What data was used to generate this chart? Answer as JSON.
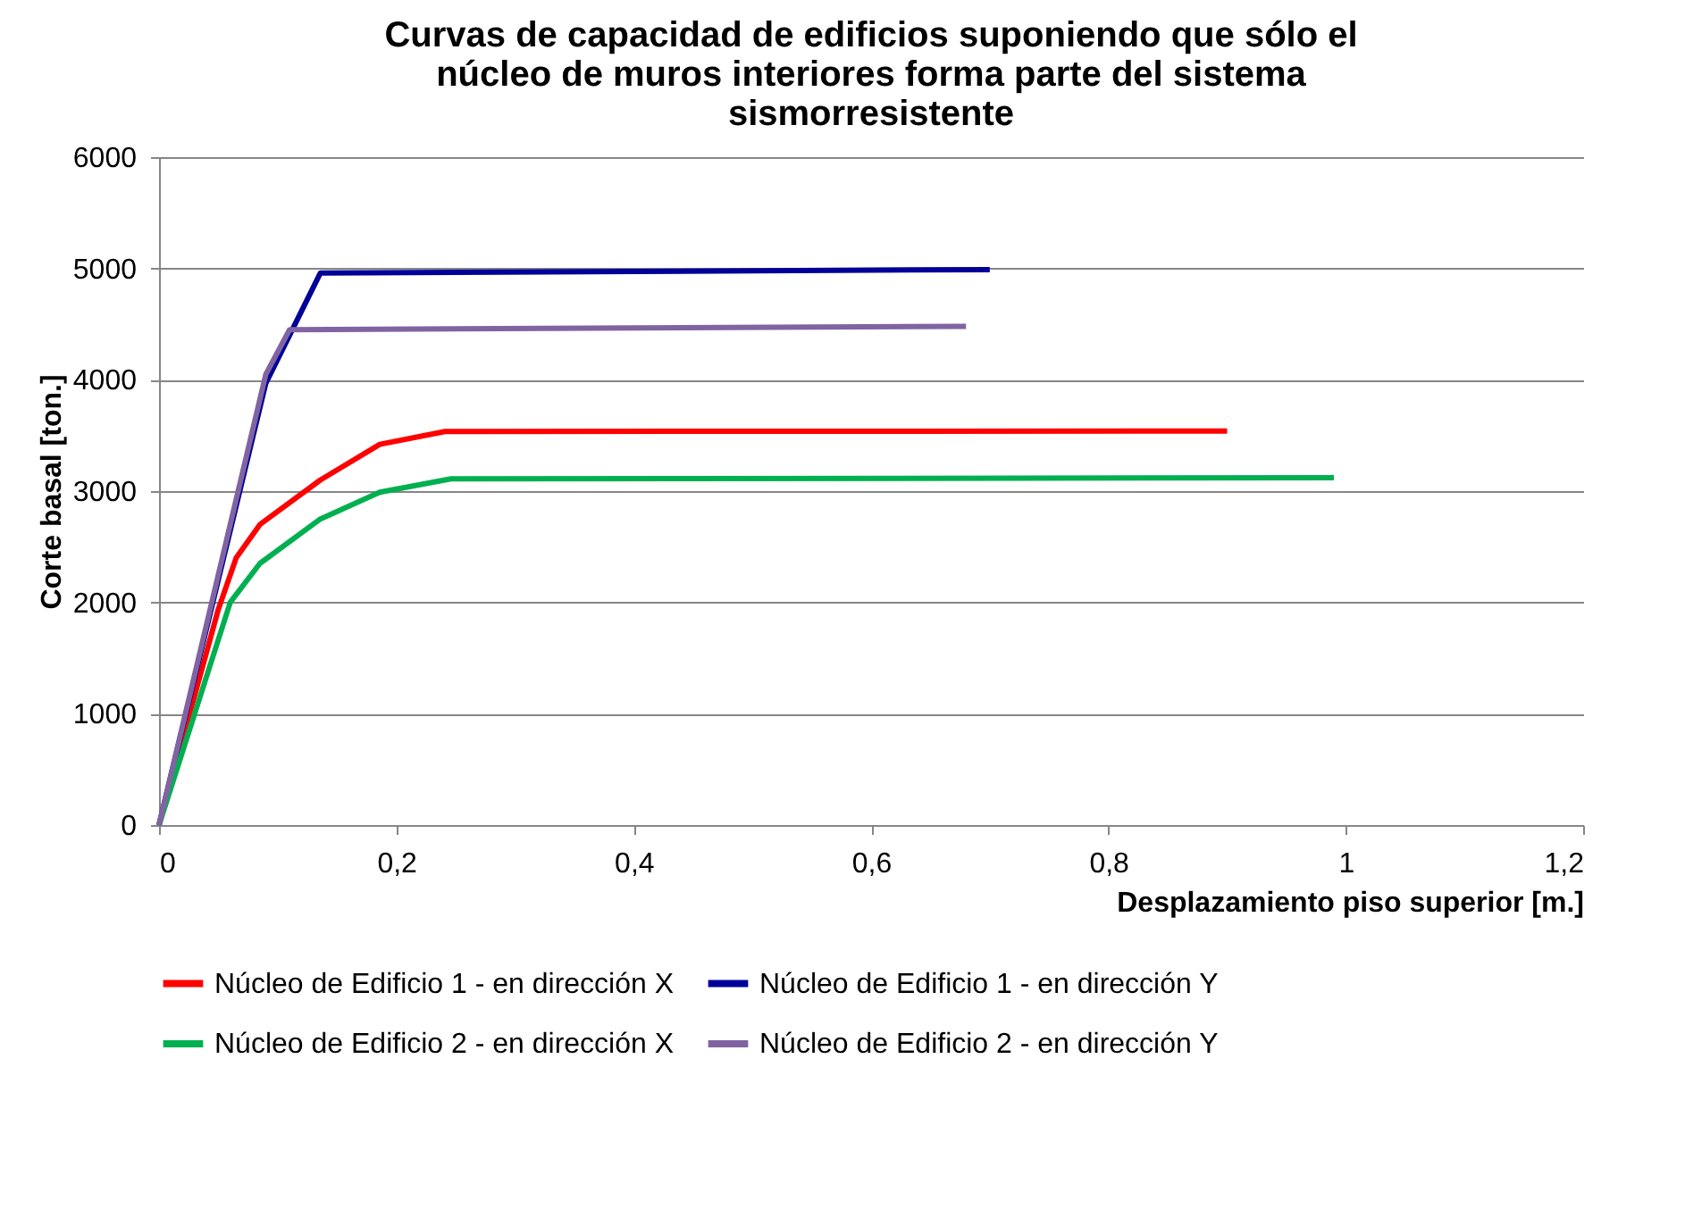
{
  "chart_data": {
    "type": "line",
    "title": "Curvas de capacidad de edificios suponiendo que sólo el núcleo de muros interiores forma parte del sistema sismorresistente",
    "xlabel": "Desplazamiento piso superior [m.]",
    "ylabel": "Corte basal [ton.]",
    "series": [
      {
        "name": "Núcleo de Edificio 1 - en dirección X",
        "color": "#ff0000",
        "x": [
          0,
          0.05,
          0.065,
          0.085,
          0.136,
          0.186,
          0.241,
          0.9
        ],
        "values": [
          0,
          1940,
          2400,
          2700,
          3100,
          3420,
          3535,
          3540
        ]
      },
      {
        "name": "Núcleo de Edificio 1 - en dirección Y",
        "color": "#000099",
        "x": [
          0,
          0.09,
          0.136,
          0.7
        ],
        "values": [
          0,
          3970,
          4960,
          4990
        ]
      },
      {
        "name": "Núcleo de Edificio 2 - en dirección X",
        "color": "#00b050",
        "x": [
          0,
          0.06,
          0.085,
          0.136,
          0.186,
          0.246,
          0.99
        ],
        "values": [
          0,
          2000,
          2350,
          2750,
          2990,
          3110,
          3120
        ]
      },
      {
        "name": "Núcleo de Edificio 2 - en dirección Y",
        "color": "#8064a2",
        "x": [
          0,
          0.09,
          0.11,
          0.68
        ],
        "values": [
          0,
          4050,
          4450,
          4480
        ]
      }
    ],
    "xlim": [
      0,
      1.2
    ],
    "xticks": [
      0,
      {
        "value": 0.2,
        "label": "0,2"
      },
      {
        "value": 0.4,
        "label": "0,4"
      },
      {
        "value": 0.6,
        "label": "0,6"
      },
      {
        "value": 0.8,
        "label": "0,8"
      },
      1,
      {
        "value": 1.2,
        "label": "1,2"
      }
    ],
    "ylim": [
      0,
      6000
    ],
    "yticks": [
      0,
      1000,
      2000,
      3000,
      4000,
      5000,
      6000
    ],
    "grid": "y",
    "legend": "bottom",
    "marker": "none",
    "line_style": "solid"
  }
}
